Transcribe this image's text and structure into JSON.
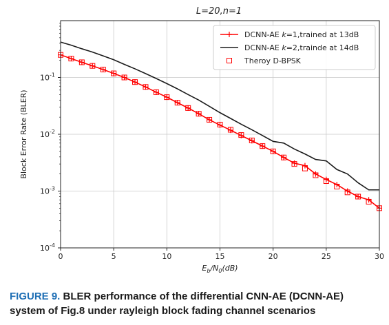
{
  "chart_data": {
    "type": "line",
    "title": "L=20,n=1",
    "xlabel": "E_b/N_0(dB)",
    "ylabel": "Block Error Rate (BLER)",
    "xlim": [
      0,
      30
    ],
    "ylim": [
      0.0001,
      1
    ],
    "yscale": "log",
    "grid": true,
    "legend_position": "top-right",
    "x_ticks": [
      "0",
      "5",
      "10",
      "15",
      "20",
      "25",
      "30"
    ],
    "y_ticks": [
      {
        "base": "10",
        "exp": "-4",
        "value": 0.0001
      },
      {
        "base": "10",
        "exp": "-3",
        "value": 0.001
      },
      {
        "base": "10",
        "exp": "-2",
        "value": 0.01
      },
      {
        "base": "10",
        "exp": "-1",
        "value": 0.1
      }
    ],
    "series": [
      {
        "name": "DCNN-AE k=1,trained at 13dB",
        "color": "#ff0000",
        "marker": "plus",
        "x": [
          0,
          1,
          2,
          3,
          4,
          5,
          6,
          7,
          8,
          9,
          10,
          11,
          12,
          13,
          14,
          15,
          16,
          17,
          18,
          19,
          20,
          21,
          22,
          23,
          24,
          25,
          26,
          27,
          28,
          29,
          30
        ],
        "y": [
          0.25,
          0.215,
          0.185,
          0.16,
          0.138,
          0.118,
          0.1,
          0.083,
          0.068,
          0.055,
          0.045,
          0.036,
          0.029,
          0.023,
          0.018,
          0.0145,
          0.0118,
          0.0095,
          0.0077,
          0.0062,
          0.005,
          0.0039,
          0.0031,
          0.0028,
          0.002,
          0.0016,
          0.0013,
          0.001,
          0.0008,
          0.0007,
          0.0005
        ]
      },
      {
        "name": "DCNN-AE k=2,trainde at 14dB",
        "color": "#1a1a1a",
        "marker": "none",
        "x": [
          0,
          1,
          2,
          3,
          4,
          5,
          6,
          7,
          8,
          9,
          10,
          11,
          12,
          13,
          14,
          15,
          16,
          17,
          18,
          19,
          20,
          21,
          22,
          23,
          24,
          25,
          26,
          27,
          28,
          29,
          30
        ],
        "y": [
          0.42,
          0.37,
          0.32,
          0.28,
          0.24,
          0.205,
          0.17,
          0.142,
          0.117,
          0.096,
          0.078,
          0.063,
          0.05,
          0.04,
          0.031,
          0.024,
          0.019,
          0.015,
          0.012,
          0.0095,
          0.0075,
          0.007,
          0.0055,
          0.0045,
          0.0036,
          0.0034,
          0.0024,
          0.002,
          0.0014,
          0.00105,
          0.00105
        ]
      },
      {
        "name": "Theroy D-BPSK",
        "color": "#ff0000",
        "marker": "square-open",
        "x": [
          0,
          1,
          2,
          3,
          4,
          5,
          6,
          7,
          8,
          9,
          10,
          11,
          12,
          13,
          14,
          15,
          16,
          17,
          18,
          19,
          20,
          21,
          22,
          23,
          24,
          25,
          26,
          27,
          28,
          29,
          30
        ],
        "y": [
          0.25,
          0.215,
          0.185,
          0.16,
          0.138,
          0.118,
          0.1,
          0.083,
          0.068,
          0.055,
          0.045,
          0.036,
          0.029,
          0.023,
          0.018,
          0.0148,
          0.012,
          0.0097,
          0.0078,
          0.0062,
          0.005,
          0.0039,
          0.003,
          0.0025,
          0.0019,
          0.0015,
          0.0012,
          0.00095,
          0.0008,
          0.00065,
          0.0005
        ]
      }
    ]
  },
  "legend": [
    {
      "pre": "DCNN-AE ",
      "var": "k",
      "post": "=1,trained at 13dB"
    },
    {
      "pre": "DCNN-AE ",
      "var": "k",
      "post": "=2,trainde at 14dB"
    },
    {
      "pre": "Theroy D-BPSK",
      "var": "",
      "post": ""
    }
  ],
  "caption": {
    "label": "FIGURE 9.",
    "text": "BLER performance of the differential CNN-AE (DCNN-AE) system of Fig.8 under rayleigh block fading channel scenarios"
  }
}
